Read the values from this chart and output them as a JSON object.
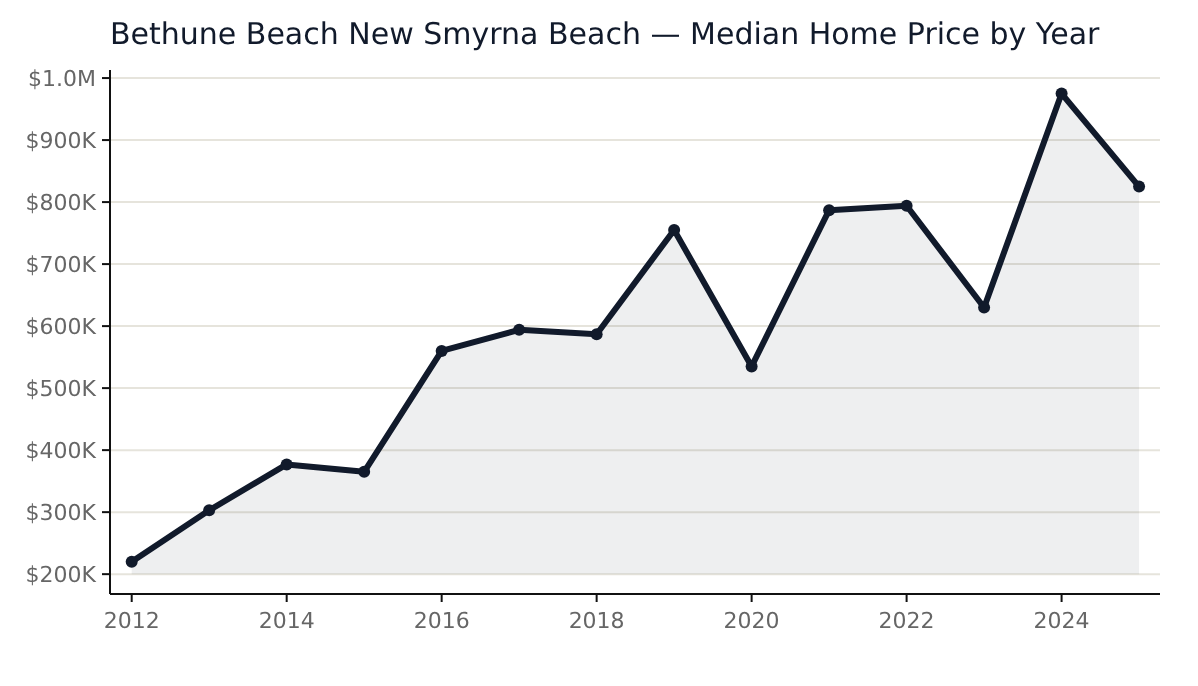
{
  "chart_data": {
    "type": "area",
    "title": "Bethune Beach New Smyrna Beach — Median Home Price by Year",
    "x": [
      2012,
      2013,
      2014,
      2015,
      2016,
      2017,
      2018,
      2019,
      2020,
      2021,
      2022,
      2023,
      2024,
      2025
    ],
    "series": [
      {
        "color": "#111a2b",
        "values": [
          220000,
          303000,
          377000,
          365000,
          560000,
          594000,
          587000,
          755000,
          535000,
          787000,
          794000,
          630000,
          975000,
          825000
        ]
      }
    ],
    "xlim": [
      2011.72,
      2025.27
    ],
    "xticks": [
      2012,
      2014,
      2016,
      2018,
      2020,
      2022,
      2024
    ],
    "ylim": [
      168000,
      1013000
    ],
    "yticks": [
      {
        "value": 200000,
        "label": "$200K"
      },
      {
        "value": 300000,
        "label": "$300K"
      },
      {
        "value": 400000,
        "label": "$400K"
      },
      {
        "value": 500000,
        "label": "$500K"
      },
      {
        "value": 600000,
        "label": "$600K"
      },
      {
        "value": 700000,
        "label": "$700K"
      },
      {
        "value": 800000,
        "label": "$800K"
      },
      {
        "value": 900000,
        "label": "$900K"
      },
      {
        "value": 1000000,
        "label": "$1.0M"
      }
    ],
    "grid": "y",
    "marker": "circle",
    "line_style": "solid"
  }
}
